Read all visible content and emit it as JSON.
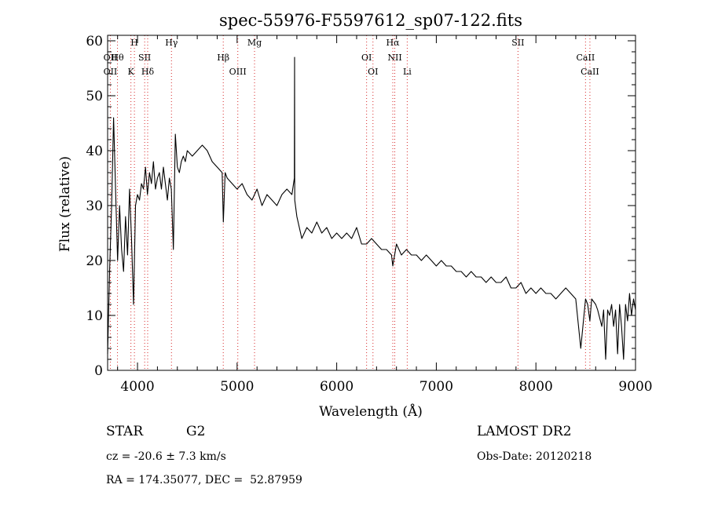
{
  "chart_data": {
    "type": "line",
    "title": "spec-55976-F5597612_sp07-122.fits",
    "xlabel": "Wavelength (Å)",
    "ylabel": "Flux (relative)",
    "xlim": [
      3700,
      9000
    ],
    "ylim": [
      0,
      61
    ],
    "xticks": [
      4000,
      5000,
      6000,
      7000,
      8000,
      9000
    ],
    "yticks": [
      0,
      10,
      20,
      30,
      40,
      50,
      60
    ],
    "grid": false,
    "line_color": "#000000",
    "marker_color": "#d62728",
    "series": [
      {
        "x": [
          3700,
          3720,
          3740,
          3760,
          3780,
          3800,
          3820,
          3840,
          3860,
          3880,
          3900,
          3920,
          3940,
          3960,
          3980,
          4000,
          4020,
          4040,
          4060,
          4080,
          4100,
          4120,
          4140,
          4160,
          4180,
          4200,
          4220,
          4240,
          4260,
          4280,
          4300,
          4320,
          4340,
          4360,
          4380,
          4400,
          4420,
          4440,
          4460,
          4480,
          4500,
          4550,
          4600,
          4650,
          4700,
          4750,
          4800,
          4850,
          4862,
          4880,
          4900,
          4950,
          5000,
          5050,
          5100,
          5150,
          5200,
          5250,
          5300,
          5350,
          5400,
          5450,
          5500,
          5550,
          5575,
          5577,
          5579,
          5600,
          5650,
          5700,
          5750,
          5800,
          5850,
          5900,
          5950,
          6000,
          6050,
          6100,
          6150,
          6200,
          6250,
          6300,
          6350,
          6400,
          6450,
          6500,
          6550,
          6563,
          6600,
          6650,
          6700,
          6750,
          6800,
          6850,
          6900,
          6950,
          7000,
          7050,
          7100,
          7150,
          7200,
          7250,
          7300,
          7350,
          7400,
          7450,
          7500,
          7550,
          7600,
          7650,
          7700,
          7750,
          7800,
          7850,
          7900,
          7950,
          8000,
          8050,
          8100,
          8150,
          8200,
          8250,
          8300,
          8350,
          8400,
          8450,
          8498,
          8520,
          8542,
          8560,
          8600,
          8620,
          8662,
          8680,
          8700,
          8720,
          8740,
          8760,
          8780,
          8800,
          8820,
          8840,
          8860,
          8880,
          8900,
          8920,
          8940,
          8960,
          8980,
          9000
        ],
        "y": [
          3,
          18,
          30,
          46,
          33,
          20,
          30,
          22,
          18,
          28,
          21,
          33,
          24,
          12,
          30,
          32,
          31,
          34,
          33,
          37,
          32,
          36,
          34,
          38,
          33,
          35,
          36,
          33,
          37,
          34,
          31,
          35,
          33,
          22,
          43,
          37,
          36,
          38,
          39,
          38,
          40,
          39,
          40,
          41,
          40,
          38,
          37,
          36,
          27,
          36,
          35,
          34,
          33,
          34,
          32,
          31,
          33,
          30,
          32,
          31,
          30,
          32,
          33,
          32,
          35,
          57,
          31,
          28,
          24,
          26,
          25,
          27,
          25,
          26,
          24,
          25,
          24,
          25,
          24,
          26,
          23,
          23,
          24,
          23,
          22,
          22,
          21,
          19,
          23,
          21,
          22,
          21,
          21,
          20,
          21,
          20,
          19,
          20,
          19,
          19,
          18,
          18,
          17,
          18,
          17,
          17,
          16,
          17,
          16,
          16,
          17,
          15,
          15,
          16,
          14,
          15,
          14,
          15,
          14,
          14,
          13,
          14,
          15,
          14,
          13,
          4,
          13,
          12,
          9,
          13,
          12,
          11,
          8,
          11,
          2,
          11,
          10,
          12,
          8,
          11,
          3,
          12,
          8,
          2,
          12,
          9,
          14,
          10,
          13,
          11
        ]
      }
    ],
    "lines": [
      {
        "wavelength": 3727,
        "labels": [
          "OII",
          "OII"
        ]
      },
      {
        "wavelength": 3799,
        "labels": [
          "Hθ"
        ]
      },
      {
        "wavelength": 3934,
        "labels": [
          "K"
        ]
      },
      {
        "wavelength": 3969,
        "labels": [
          "H"
        ]
      },
      {
        "wavelength": 4072,
        "labels": [
          "SII"
        ]
      },
      {
        "wavelength": 4102,
        "labels": [
          "Hδ"
        ]
      },
      {
        "wavelength": 4341,
        "labels": [
          "Hγ"
        ]
      },
      {
        "wavelength": 4861,
        "labels": [
          "Hβ"
        ]
      },
      {
        "wavelength": 5007,
        "labels": [
          "OIII"
        ]
      },
      {
        "wavelength": 5175,
        "labels": [
          "Mg"
        ]
      },
      {
        "wavelength": 6300,
        "labels": [
          "OI"
        ]
      },
      {
        "wavelength": 6364,
        "labels": [
          "OI"
        ]
      },
      {
        "wavelength": 6563,
        "labels": [
          "Hα"
        ]
      },
      {
        "wavelength": 6583,
        "labels": [
          "NII"
        ]
      },
      {
        "wavelength": 6708,
        "labels": [
          "Li"
        ]
      },
      {
        "wavelength": 7820,
        "labels": [
          "SII"
        ]
      },
      {
        "wavelength": 8498,
        "labels": [
          "CaII"
        ]
      },
      {
        "wavelength": 8542,
        "labels": [
          "CaII"
        ]
      }
    ]
  },
  "info": {
    "class": "STAR",
    "subclass": "G2",
    "survey": "LAMOST DR2",
    "redshift": "cz = -20.6 ± 7.3 km/s",
    "obs_date": "Obs-Date: 20120218",
    "coords": "RA = 174.35077, DEC =  52.87959"
  }
}
